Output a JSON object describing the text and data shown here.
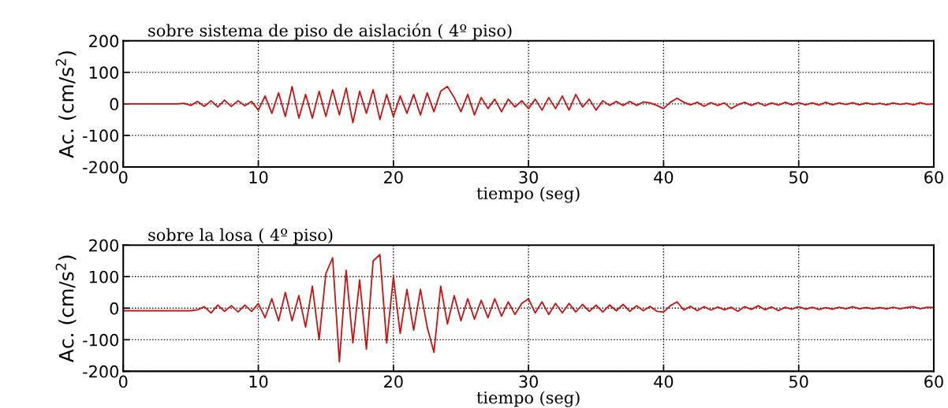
{
  "chart_data": [
    {
      "type": "line",
      "title": "sobre sistema de piso de aislación ( 4º piso)",
      "xlabel": "tiempo (seg)",
      "ylabel": "Ac. (cm/s$^{2}$)",
      "xlim": [
        0,
        60
      ],
      "xticks": [
        0,
        10,
        20,
        30,
        40,
        50,
        60
      ],
      "ylim": [
        -200,
        200
      ],
      "yticks": [
        -200,
        -100,
        0,
        100,
        200
      ],
      "grid": true,
      "marker": "none",
      "line_style": "solid",
      "series": [
        {
          "color": "#cc1111",
          "x": [
            0,
            4,
            4.5,
            5,
            5.5,
            6,
            6.5,
            7,
            7.5,
            8,
            8.5,
            9,
            9.5,
            10,
            10.5,
            11,
            11.5,
            12,
            12.5,
            13,
            13.5,
            14,
            14.5,
            15,
            15.5,
            16,
            16.5,
            17,
            17.5,
            18,
            18.5,
            19,
            19.5,
            20,
            20.5,
            21,
            21.5,
            22,
            22.5,
            23,
            23.5,
            24,
            24.5,
            25,
            25.5,
            26,
            26.5,
            27,
            27.5,
            28,
            28.5,
            29,
            29.5,
            30,
            30.5,
            31,
            31.5,
            32,
            32.5,
            33,
            33.5,
            34,
            34.5,
            35,
            35.5,
            36,
            36.5,
            37,
            37.5,
            38,
            38.5,
            39,
            39.5,
            40,
            40.5,
            41,
            41.5,
            42,
            42.5,
            43,
            43.5,
            44,
            44.5,
            45,
            45.5,
            46,
            46.5,
            47,
            47.5,
            48,
            48.5,
            49,
            49.5,
            50,
            50.5,
            51,
            51.5,
            52,
            52.5,
            53,
            53.5,
            54,
            54.5,
            55,
            55.5,
            56,
            56.5,
            57,
            57.5,
            58,
            58.5,
            59,
            59.5,
            60
          ],
          "values": [
            0,
            0,
            2,
            -5,
            8,
            -8,
            10,
            -10,
            12,
            -8,
            10,
            -6,
            8,
            -20,
            25,
            -30,
            35,
            -40,
            55,
            -45,
            30,
            -45,
            40,
            -40,
            45,
            -35,
            50,
            -60,
            40,
            -30,
            45,
            -50,
            30,
            -40,
            25,
            -30,
            30,
            -35,
            35,
            -25,
            40,
            55,
            20,
            -25,
            30,
            -35,
            20,
            -15,
            15,
            -25,
            15,
            -10,
            10,
            -15,
            15,
            -20,
            20,
            -15,
            25,
            -20,
            30,
            -10,
            15,
            -20,
            10,
            -5,
            8,
            -5,
            8,
            -5,
            6,
            3,
            -5,
            -15,
            5,
            18,
            5,
            -3,
            5,
            -8,
            4,
            -5,
            3,
            -15,
            -3,
            5,
            -5,
            4,
            -6,
            3,
            -4,
            5,
            -3,
            4,
            -3,
            3,
            -4,
            5,
            -3,
            3,
            -2,
            4,
            -3,
            3,
            -2,
            2,
            -3,
            3,
            -2,
            2,
            -3,
            4,
            -2,
            0
          ]
        }
      ]
    },
    {
      "type": "line",
      "title": "sobre la losa ( 4º piso)",
      "xlabel": "tiempo (seg)",
      "ylabel": "Ac. (cm/s$^{2}$)",
      "xlim": [
        0,
        60
      ],
      "xticks": [
        0,
        10,
        20,
        30,
        40,
        50,
        60
      ],
      "ylim": [
        -200,
        200
      ],
      "yticks": [
        -200,
        -100,
        0,
        100,
        200
      ],
      "grid": true,
      "marker": "none",
      "line_style": "solid",
      "series": [
        {
          "color": "#cc1111",
          "x": [
            0,
            5,
            5.5,
            6,
            6.5,
            7,
            7.5,
            8,
            8.5,
            9,
            9.5,
            10,
            10.5,
            11,
            11.5,
            12,
            12.5,
            13,
            13.5,
            14,
            14.5,
            15,
            15.5,
            16,
            16.5,
            17,
            17.5,
            18,
            18.5,
            19,
            19.5,
            20,
            20.5,
            21,
            21.5,
            22,
            22.5,
            23,
            23.5,
            24,
            24.5,
            25,
            25.5,
            26,
            26.5,
            27,
            27.5,
            28,
            28.5,
            29,
            29.5,
            30,
            30.5,
            31,
            31.5,
            32,
            32.5,
            33,
            33.5,
            34,
            34.5,
            35,
            35.5,
            36,
            36.5,
            37,
            37.5,
            38,
            38.5,
            39,
            39.5,
            40,
            40.5,
            41,
            41.5,
            42,
            42.5,
            43,
            43.5,
            44,
            44.5,
            45,
            45.5,
            46,
            46.5,
            47,
            47.5,
            48,
            48.5,
            49,
            49.5,
            50,
            50.5,
            51,
            51.5,
            52,
            52.5,
            53,
            53.5,
            54,
            54.5,
            55,
            55.5,
            56,
            56.5,
            57,
            57.5,
            58,
            58.5,
            59,
            59.5,
            60
          ],
          "values": [
            -8,
            -8,
            -5,
            5,
            -15,
            10,
            -10,
            8,
            -12,
            10,
            -10,
            15,
            -30,
            30,
            -40,
            50,
            -40,
            40,
            -60,
            70,
            -100,
            110,
            160,
            -170,
            120,
            -110,
            90,
            -130,
            150,
            170,
            -110,
            100,
            -80,
            60,
            -70,
            60,
            -60,
            -140,
            70,
            -50,
            40,
            -40,
            30,
            -35,
            25,
            -30,
            30,
            -25,
            20,
            -20,
            15,
            30,
            -15,
            20,
            -20,
            15,
            -15,
            15,
            -12,
            12,
            -10,
            10,
            -12,
            10,
            -8,
            12,
            -10,
            8,
            -8,
            6,
            -10,
            -12,
            8,
            20,
            -6,
            6,
            -8,
            5,
            -6,
            4,
            -5,
            3,
            -10,
            5,
            -4,
            8,
            -5,
            4,
            -8,
            3,
            -3,
            5,
            -3,
            3,
            -4,
            2,
            -3,
            3,
            -2,
            5,
            -2,
            2,
            -2,
            2,
            -2,
            3,
            -2,
            2,
            5,
            -2,
            3,
            2
          ]
        }
      ]
    }
  ]
}
